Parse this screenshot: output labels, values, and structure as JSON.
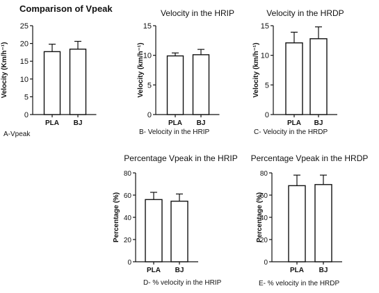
{
  "chart_data": [
    {
      "type": "bar",
      "title": "Comparison of Vpeak",
      "caption": "A-Vpeak",
      "ylabel": "Velocity (Km/h⁻¹)",
      "xlabel": "",
      "categories": [
        "PLA",
        "BJ"
      ],
      "values": [
        17.7,
        18.4
      ],
      "errors": [
        2.1,
        2.2
      ],
      "ylim": [
        0,
        25
      ],
      "yticks": [
        0,
        5,
        10,
        15,
        20,
        25
      ],
      "grid": false
    },
    {
      "type": "bar",
      "title": "Velocity in the HRIP",
      "caption": "B- Velocity in the HRIP",
      "ylabel": "Velocity (km/h⁻¹)",
      "xlabel": "",
      "categories": [
        "PLA",
        "BJ"
      ],
      "values": [
        9.9,
        10.1
      ],
      "errors": [
        0.5,
        0.9
      ],
      "ylim": [
        0,
        15
      ],
      "yticks": [
        0,
        5,
        10,
        15
      ],
      "grid": false
    },
    {
      "type": "bar",
      "title": "Velocity in the HRDP",
      "caption": "C- Velocity in the HRDP",
      "ylabel": "Velocity (km/h⁻¹)",
      "xlabel": "",
      "categories": [
        "PLA",
        "BJ"
      ],
      "values": [
        12.1,
        12.8
      ],
      "errors": [
        1.8,
        2.0
      ],
      "ylim": [
        0,
        15
      ],
      "yticks": [
        0,
        5,
        10,
        15
      ],
      "grid": false
    },
    {
      "type": "bar",
      "title": "Percentage Vpeak in the HRIP",
      "caption": "D- % velocity in the HRIP",
      "ylabel": "Percentage (%)",
      "xlabel": "",
      "categories": [
        "PLA",
        "BJ"
      ],
      "values": [
        56,
        54.5
      ],
      "errors": [
        6.5,
        6.5
      ],
      "ylim": [
        0,
        80
      ],
      "yticks": [
        0,
        20,
        40,
        60,
        80
      ],
      "grid": false
    },
    {
      "type": "bar",
      "title": "Percentage Vpeak in the HRDP",
      "caption": "E- % velocity in the HRDP",
      "ylabel": "Percentage (%)",
      "xlabel": "",
      "categories": [
        "PLA",
        "BJ"
      ],
      "values": [
        68.5,
        69.5
      ],
      "errors": [
        9.5,
        8.5
      ],
      "ylim": [
        0,
        80
      ],
      "yticks": [
        0,
        20,
        40,
        60,
        80
      ],
      "grid": false
    }
  ]
}
